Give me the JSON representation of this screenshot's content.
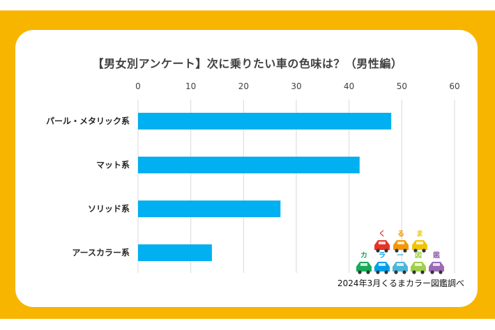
{
  "chart_data": {
    "type": "bar",
    "orientation": "horizontal",
    "title": "【男女別アンケート】次に乗りたい車の色味は？（男性編）",
    "categories": [
      "パール・メタリック系",
      "マット系",
      "ソリッド系",
      "アースカラー系"
    ],
    "values": [
      48,
      42,
      27,
      14
    ],
    "xlim": [
      0,
      60
    ],
    "x_ticks": [
      0,
      10,
      20,
      30,
      40,
      50,
      60
    ],
    "x_axis_position": "top",
    "grid": "vertical",
    "bar_color": "#00b0f0",
    "legend": "none"
  },
  "source_note": "2024年3月くるまカラー図鑑調べ",
  "logo": {
    "letters_row1": [
      "く",
      "る",
      "ま"
    ],
    "letters_row2": [
      "カ",
      "ラ",
      "ー",
      "図",
      "鑑"
    ],
    "car_colors_row1": [
      "#e6332a",
      "#f39800",
      "#f0c400"
    ],
    "car_colors_row2": [
      "#1aaa5a",
      "#00a0e9",
      "#4db6d8",
      "#a0cf4a",
      "#9b6bb5"
    ]
  },
  "colors": {
    "frame": "#f7b500",
    "panel": "#ffffff",
    "gridline": "#d9d9d9"
  }
}
